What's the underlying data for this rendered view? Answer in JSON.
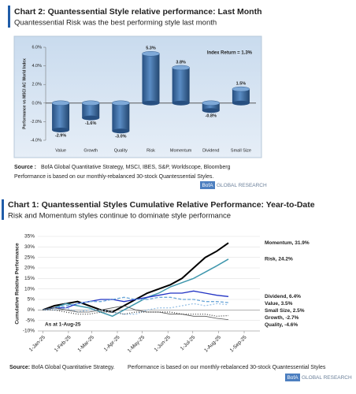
{
  "chart_data": [
    {
      "type": "bar",
      "title": "Chart 2: Quantessential Style relative performance: Last Month",
      "subtitle": "Quantessential Risk was the best performing style last month",
      "y_label": "Performance vs MSCI AC World Index",
      "annotation": "Index Return = 1.3%",
      "categories": [
        "Value",
        "Growth",
        "Quality",
        "Risk",
        "Momentum",
        "Dividend",
        "Small Size"
      ],
      "values": [
        -2.9,
        -1.6,
        -3.0,
        5.3,
        3.8,
        -0.8,
        1.5
      ],
      "value_labels": [
        "-2.9%",
        "-1.6%",
        "-3.0%",
        "5.3%",
        "3.8%",
        "-0.8%",
        "1.5%"
      ],
      "color": "#3d6da6",
      "ylim": [
        -4,
        6
      ],
      "yticks": [
        {
          "value": -4,
          "label": "-4.0%"
        },
        {
          "value": -2,
          "label": "-2.0%"
        },
        {
          "value": 0,
          "label": "0.0%"
        },
        {
          "value": 2,
          "label": "2.0%"
        },
        {
          "value": 4,
          "label": "4.0%"
        },
        {
          "value": 6,
          "label": "6.0%"
        }
      ],
      "source_label": "Source :",
      "source": "BofA Global Quantitative Strategy, MSCI, IBES, S&P, Worldscope, Bloomberg",
      "note": "Performance is based on our monthly-rebalanced 30-stock Quantessential Styles.",
      "brand_box": "BofA",
      "brand_text": "GLOBAL RESEARCH"
    },
    {
      "type": "line",
      "title": "Chart 1: Quantessential Styles Cumulative Relative Performance: Year-to-Date",
      "subtitle": "Risk and Momentum styles continue to dominate style performance",
      "y_label": "Cumulative Relative Performance",
      "annotation": "As at 1-Aug-25",
      "x": [
        "2025-01-01",
        "2025-01-15",
        "2025-01-29",
        "2025-02-12",
        "2025-02-26",
        "2025-03-12",
        "2025-03-26",
        "2025-04-09",
        "2025-04-23",
        "2025-05-07",
        "2025-05-21",
        "2025-06-04",
        "2025-06-18",
        "2025-07-02",
        "2025-07-16",
        "2025-07-30",
        "2025-08-13"
      ],
      "series": [
        {
          "name": "Momentum",
          "end_label": "Momentum, 31.9%",
          "color": "#000000",
          "width": 2,
          "dash": "",
          "values": [
            0,
            2,
            3,
            4,
            2,
            0,
            -1,
            2,
            5,
            8,
            10,
            12,
            15,
            20,
            25,
            28,
            31.9
          ]
        },
        {
          "name": "Risk",
          "end_label": "Risk, 24.2%",
          "color": "#3f97ad",
          "width": 1.5,
          "dash": "",
          "values": [
            0,
            1,
            3,
            2,
            1,
            -1,
            -3,
            0,
            3,
            6,
            8,
            11,
            13,
            15,
            18,
            21,
            24.2
          ]
        },
        {
          "name": "Dividend",
          "end_label": "Dividend, 6.4%",
          "color": "#2233c4",
          "width": 1.3,
          "dash": "",
          "values": [
            0,
            1,
            1,
            3,
            4,
            5,
            5,
            4,
            5,
            6,
            7,
            8,
            8,
            9,
            8,
            7,
            6.4
          ]
        },
        {
          "name": "Value",
          "end_label": "Value, 3.5%",
          "color": "#6aa6d8",
          "width": 1.3,
          "dash": "4 2",
          "values": [
            0,
            1,
            2,
            3,
            4,
            4,
            5,
            6,
            5,
            5,
            6,
            6,
            5,
            5,
            4,
            4,
            3.5
          ]
        },
        {
          "name": "Small Size",
          "end_label": "Small Size, 2.5%",
          "color": "#9cc3e6",
          "width": 1.3,
          "dash": "2 2",
          "values": [
            0,
            0,
            1,
            -1,
            0,
            0,
            -1,
            -2,
            -2,
            0,
            1,
            1,
            2,
            3,
            2,
            3,
            2.5
          ]
        },
        {
          "name": "Growth",
          "end_label": "Growth, -2.7%",
          "color": "#333333",
          "width": 1.2,
          "dash": "1 2",
          "values": [
            0,
            0,
            -1,
            -2,
            -2,
            -1,
            -1,
            -2,
            -1,
            -1,
            -1,
            -1,
            -2,
            -2,
            -2,
            -3,
            -2.7
          ]
        },
        {
          "name": "Quality",
          "end_label": "Quality, -4.6%",
          "color": "#555555",
          "width": 0.8,
          "dash": "",
          "values": [
            0,
            1,
            0,
            -1,
            -1,
            0,
            1,
            2,
            0,
            -1,
            -1,
            -2,
            -2,
            -3,
            -3,
            -4,
            -4.6
          ]
        }
      ],
      "xlim": [
        "2024-12-26",
        "2025-09-20"
      ],
      "xticks": [
        {
          "value": "2025-01-01",
          "label": "1-Jan-25"
        },
        {
          "value": "2025-02-01",
          "label": "1-Feb-25"
        },
        {
          "value": "2025-03-01",
          "label": "1-Mar-25"
        },
        {
          "value": "2025-04-01",
          "label": "1-Apr-25"
        },
        {
          "value": "2025-05-01",
          "label": "1-May-25"
        },
        {
          "value": "2025-06-01",
          "label": "1-Jun-25"
        },
        {
          "value": "2025-07-01",
          "label": "1-Jul-25"
        },
        {
          "value": "2025-08-01",
          "label": "1-Aug-25"
        },
        {
          "value": "2025-09-01",
          "label": "1-Sep-25"
        }
      ],
      "ylim": [
        -10,
        35
      ],
      "yticks": [
        {
          "value": -10,
          "label": "-10%"
        },
        {
          "value": -5,
          "label": "-5%"
        },
        {
          "value": 0,
          "label": "0%"
        },
        {
          "value": 5,
          "label": "5%"
        },
        {
          "value": 10,
          "label": "10%"
        },
        {
          "value": 15,
          "label": "15%"
        },
        {
          "value": 20,
          "label": "20%"
        },
        {
          "value": 25,
          "label": "25%"
        },
        {
          "value": 30,
          "label": "30%"
        },
        {
          "value": 35,
          "label": "35%"
        }
      ],
      "grid": true,
      "source_label": "Source:",
      "source": "BofA Global Quantitative Strategy.",
      "note": "Performance is based on our monthly-rebalanced 30-stock Quantessential Styles",
      "brand_box": "BofA",
      "brand_text": "GLOBAL RESEARCH"
    }
  ]
}
